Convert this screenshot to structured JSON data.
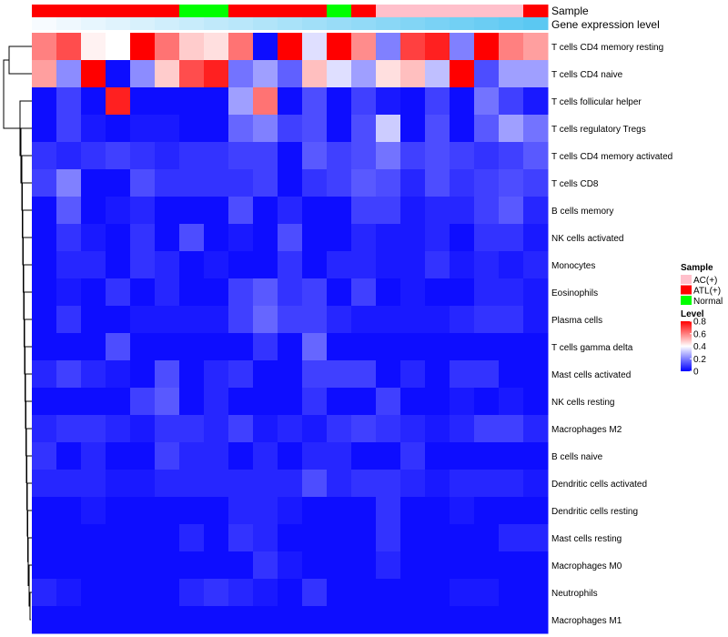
{
  "chart_data": {
    "type": "heatmap",
    "column_annotations": {
      "sample_label": "Sample",
      "expression_label": "Gene expression level",
      "sample_groups": [
        "ATL(+)",
        "ATL(+)",
        "ATL(+)",
        "ATL(+)",
        "ATL(+)",
        "ATL(+)",
        "Normal",
        "Normal",
        "ATL(+)",
        "ATL(+)",
        "ATL(+)",
        "ATL(+)",
        "Normal",
        "ATL(+)",
        "AC(+)",
        "AC(+)",
        "AC(+)",
        "AC(+)",
        "AC(+)",
        "AC(+)",
        "ATL(+)"
      ],
      "expression_levels": [
        0.0,
        0.05,
        0.1,
        0.15,
        0.2,
        0.25,
        0.3,
        0.35,
        0.4,
        0.45,
        0.5,
        0.55,
        0.6,
        0.65,
        0.7,
        0.75,
        0.8,
        0.85,
        0.9,
        0.95,
        1.0
      ]
    },
    "rows": [
      "T cells CD4 memory resting",
      "T cells CD4 naive",
      "T cells follicular helper",
      "T cells regulatory  Tregs",
      "T cells CD4 memory activated",
      "T cells CD8",
      "B cells memory",
      "NK cells activated",
      "Monocytes",
      "Eosinophils",
      "Plasma cells",
      "T cells gamma delta",
      "Mast cells activated",
      "NK cells resting",
      "Macrophages M2",
      "B cells naive",
      "Dendritic cells activated",
      "Dendritic cells resting",
      "Mast cells resting",
      "Macrophages M0",
      "Neutrophils",
      "Macrophages M1"
    ],
    "values": [
      [
        0.6,
        0.68,
        0.42,
        0.4,
        0.8,
        0.62,
        0.48,
        0.45,
        0.62,
        0.02,
        0.8,
        0.35,
        0.8,
        0.58,
        0.2,
        0.7,
        0.75,
        0.2,
        0.8,
        0.6,
        0.55
      ],
      [
        0.55,
        0.22,
        0.8,
        0.02,
        0.22,
        0.48,
        0.68,
        0.75,
        0.18,
        0.25,
        0.15,
        0.5,
        0.35,
        0.25,
        0.45,
        0.5,
        0.3,
        0.8,
        0.12,
        0.25,
        0.25
      ],
      [
        0.02,
        0.1,
        0.02,
        0.75,
        0.02,
        0.02,
        0.02,
        0.02,
        0.25,
        0.62,
        0.02,
        0.12,
        0.02,
        0.1,
        0.04,
        0.02,
        0.1,
        0.02,
        0.18,
        0.1,
        0.04
      ],
      [
        0.02,
        0.1,
        0.04,
        0.02,
        0.04,
        0.04,
        0.02,
        0.02,
        0.16,
        0.2,
        0.1,
        0.12,
        0.02,
        0.12,
        0.32,
        0.02,
        0.12,
        0.02,
        0.14,
        0.25,
        0.18
      ],
      [
        0.08,
        0.06,
        0.08,
        0.1,
        0.08,
        0.06,
        0.08,
        0.08,
        0.1,
        0.1,
        0.02,
        0.14,
        0.1,
        0.12,
        0.18,
        0.1,
        0.12,
        0.1,
        0.08,
        0.1,
        0.14
      ],
      [
        0.1,
        0.2,
        0.02,
        0.02,
        0.12,
        0.08,
        0.08,
        0.08,
        0.08,
        0.1,
        0.02,
        0.08,
        0.1,
        0.14,
        0.12,
        0.06,
        0.12,
        0.08,
        0.1,
        0.12,
        0.1
      ],
      [
        0.02,
        0.14,
        0.02,
        0.04,
        0.06,
        0.02,
        0.02,
        0.02,
        0.12,
        0.02,
        0.06,
        0.02,
        0.02,
        0.1,
        0.1,
        0.04,
        0.06,
        0.06,
        0.1,
        0.14,
        0.06
      ],
      [
        0.02,
        0.08,
        0.04,
        0.02,
        0.08,
        0.02,
        0.12,
        0.02,
        0.04,
        0.02,
        0.12,
        0.02,
        0.02,
        0.06,
        0.04,
        0.04,
        0.06,
        0.02,
        0.08,
        0.08,
        0.04
      ],
      [
        0.02,
        0.06,
        0.06,
        0.02,
        0.08,
        0.06,
        0.02,
        0.04,
        0.02,
        0.02,
        0.08,
        0.02,
        0.06,
        0.06,
        0.04,
        0.04,
        0.08,
        0.04,
        0.06,
        0.04,
        0.06
      ],
      [
        0.02,
        0.04,
        0.02,
        0.08,
        0.02,
        0.06,
        0.02,
        0.02,
        0.1,
        0.14,
        0.08,
        0.1,
        0.02,
        0.1,
        0.02,
        0.04,
        0.02,
        0.02,
        0.06,
        0.06,
        0.04
      ],
      [
        0.02,
        0.08,
        0.02,
        0.02,
        0.04,
        0.04,
        0.04,
        0.04,
        0.1,
        0.16,
        0.1,
        0.1,
        0.06,
        0.04,
        0.04,
        0.04,
        0.04,
        0.06,
        0.08,
        0.08,
        0.04
      ],
      [
        0.02,
        0.02,
        0.02,
        0.12,
        0.02,
        0.02,
        0.02,
        0.02,
        0.02,
        0.08,
        0.02,
        0.16,
        0.02,
        0.02,
        0.02,
        0.02,
        0.02,
        0.02,
        0.02,
        0.02,
        0.02
      ],
      [
        0.06,
        0.1,
        0.06,
        0.04,
        0.02,
        0.12,
        0.02,
        0.06,
        0.08,
        0.02,
        0.02,
        0.1,
        0.1,
        0.1,
        0.02,
        0.06,
        0.02,
        0.08,
        0.08,
        0.02,
        0.02
      ],
      [
        0.02,
        0.02,
        0.02,
        0.02,
        0.1,
        0.14,
        0.02,
        0.06,
        0.02,
        0.02,
        0.02,
        0.08,
        0.02,
        0.02,
        0.1,
        0.02,
        0.02,
        0.04,
        0.02,
        0.04,
        0.02
      ],
      [
        0.06,
        0.08,
        0.08,
        0.06,
        0.04,
        0.08,
        0.08,
        0.06,
        0.1,
        0.04,
        0.06,
        0.04,
        0.08,
        0.1,
        0.08,
        0.06,
        0.04,
        0.06,
        0.1,
        0.1,
        0.06
      ],
      [
        0.08,
        0.02,
        0.06,
        0.02,
        0.02,
        0.1,
        0.06,
        0.06,
        0.02,
        0.06,
        0.02,
        0.06,
        0.06,
        0.02,
        0.02,
        0.08,
        0.02,
        0.02,
        0.02,
        0.02,
        0.02
      ],
      [
        0.06,
        0.06,
        0.06,
        0.04,
        0.04,
        0.06,
        0.06,
        0.06,
        0.06,
        0.06,
        0.06,
        0.12,
        0.06,
        0.08,
        0.08,
        0.06,
        0.04,
        0.06,
        0.06,
        0.06,
        0.04
      ],
      [
        0.02,
        0.02,
        0.04,
        0.02,
        0.02,
        0.02,
        0.02,
        0.02,
        0.06,
        0.06,
        0.04,
        0.02,
        0.02,
        0.02,
        0.08,
        0.02,
        0.02,
        0.04,
        0.02,
        0.02,
        0.02
      ],
      [
        0.02,
        0.02,
        0.02,
        0.02,
        0.02,
        0.02,
        0.06,
        0.02,
        0.08,
        0.06,
        0.02,
        0.02,
        0.02,
        0.02,
        0.08,
        0.02,
        0.02,
        0.02,
        0.02,
        0.06,
        0.06
      ],
      [
        0.02,
        0.02,
        0.02,
        0.02,
        0.02,
        0.02,
        0.02,
        0.02,
        0.02,
        0.08,
        0.04,
        0.02,
        0.02,
        0.02,
        0.06,
        0.02,
        0.02,
        0.02,
        0.02,
        0.02,
        0.02
      ],
      [
        0.06,
        0.04,
        0.02,
        0.02,
        0.02,
        0.02,
        0.06,
        0.08,
        0.06,
        0.04,
        0.02,
        0.08,
        0.02,
        0.02,
        0.02,
        0.02,
        0.02,
        0.04,
        0.04,
        0.02,
        0.02
      ],
      [
        0.02,
        0.02,
        0.02,
        0.02,
        0.02,
        0.02,
        0.02,
        0.02,
        0.02,
        0.02,
        0.02,
        0.02,
        0.02,
        0.02,
        0.02,
        0.02,
        0.02,
        0.02,
        0.02,
        0.02,
        0.02
      ]
    ],
    "legend": {
      "sample_title": "Sample",
      "sample_items": [
        {
          "label": "AC(+)",
          "color": "#ffc0cb"
        },
        {
          "label": "ATL(+)",
          "color": "#ff0000"
        },
        {
          "label": "Normal",
          "color": "#00ff00"
        }
      ],
      "level_title": "Level",
      "level_ticks": [
        "0.8",
        "0.6",
        "0.4",
        "0.2",
        "0"
      ],
      "level_range": [
        0,
        0.8
      ]
    },
    "colors": {
      "low": "#0000ff",
      "mid": "#ffffff",
      "high": "#ff0000",
      "expression_low": "#f7fbff",
      "expression_high": "#5bc8f2"
    }
  }
}
